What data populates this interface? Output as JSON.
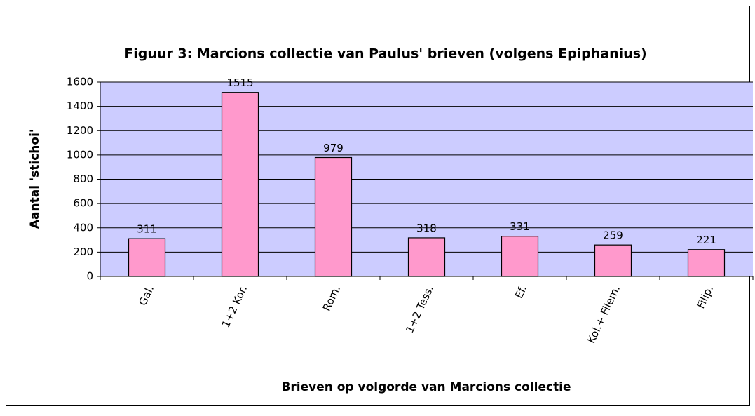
{
  "chart_data": {
    "type": "bar",
    "title": "Figuur 3: Marcions collectie van Paulus' brieven (volgens Epiphanius)",
    "x_label": "Brieven op volgorde van Marcions collectie",
    "y_label": "Aantal 'stichoi'",
    "categories": [
      "Gal.",
      "1+2 Kor.",
      "Rom.",
      "1+2 Tess.",
      "Ef.",
      "Kol.+ Filem.",
      "Filip."
    ],
    "values": [
      311,
      1515,
      979,
      318,
      331,
      259,
      221
    ],
    "color": "#ff99cc",
    "background": "#ccccff",
    "ylim": [
      0,
      1600
    ],
    "yticks": [
      0,
      200,
      400,
      600,
      800,
      1000,
      1200,
      1400,
      1600
    ],
    "grid": true
  }
}
